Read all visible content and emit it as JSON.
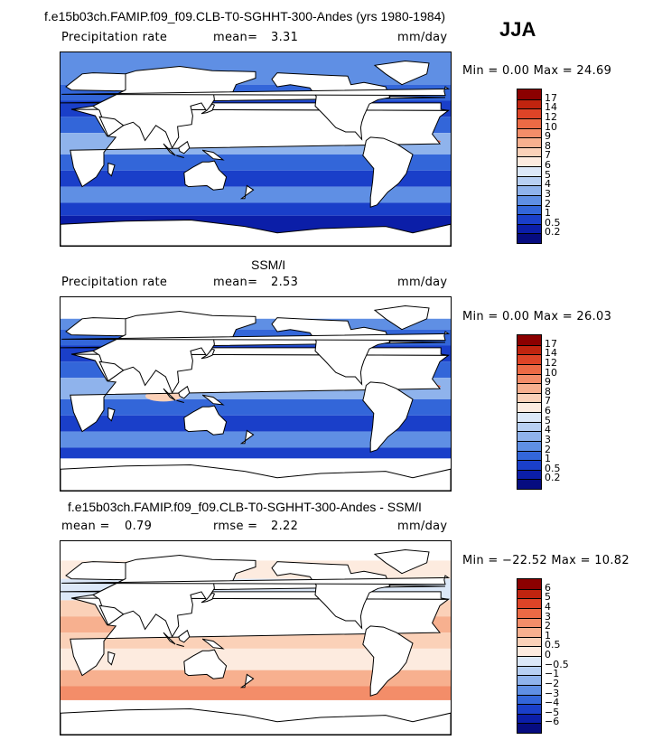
{
  "header": {
    "title": "f.e15b03ch.FAMIP.f09_f09.CLB-T0-SGHHT-300-Andes (yrs 1980-1984)",
    "season": "JJA"
  },
  "panels": [
    {
      "id": "model",
      "variable": "Precipitation rate",
      "stat_label": "mean=",
      "stat_value": "3.31",
      "units": "mm/day",
      "minmax": "Min =    0.00 Max =   24.69"
    },
    {
      "id": "obs",
      "subtitle": "SSM/I",
      "variable": "Precipitation rate",
      "stat_label": "mean=",
      "stat_value": "2.53",
      "units": "mm/day",
      "minmax": "Min =    0.00 Max =   26.03"
    },
    {
      "id": "diff",
      "subtitle": "f.e15b03ch.FAMIP.f09_f09.CLB-T0-SGHHT-300-Andes - SSM/I",
      "stat_label": "mean =",
      "stat_value": "0.79",
      "rmse_label": "rmse =",
      "rmse_value": "2.22",
      "units": "mm/day",
      "minmax": "Min = −22.52 Max =   10.82"
    }
  ],
  "chart_data": [
    {
      "type": "heatmap",
      "title": "Precipitation rate",
      "units": "mm/day",
      "mean": 3.31,
      "min": 0.0,
      "max": 24.69,
      "colorbar_levels": [
        "17",
        "14",
        "12",
        "10",
        "9",
        "8",
        "7",
        "6",
        "5",
        "4",
        "3",
        "2",
        "1",
        "0.5",
        "0.2"
      ],
      "colorbar_colors": [
        "#8b0000",
        "#c0240f",
        "#de4427",
        "#ec6a45",
        "#f38d69",
        "#f7b08f",
        "#fbd1b8",
        "#fdebdf",
        "#dce8f8",
        "#b8d0f3",
        "#8fb3ec",
        "#5f8fe4",
        "#3366d9",
        "#1a3fc9",
        "#0b1ea8",
        "#060c80"
      ]
    },
    {
      "type": "heatmap",
      "title": "SSM/I",
      "units": "mm/day",
      "mean": 2.53,
      "min": 0.0,
      "max": 26.03,
      "colorbar_levels": [
        "17",
        "14",
        "12",
        "10",
        "9",
        "8",
        "7",
        "6",
        "5",
        "4",
        "3",
        "2",
        "1",
        "0.5",
        "0.2"
      ],
      "colorbar_colors": [
        "#8b0000",
        "#c0240f",
        "#de4427",
        "#ec6a45",
        "#f38d69",
        "#f7b08f",
        "#fbd1b8",
        "#fdebdf",
        "#dce8f8",
        "#b8d0f3",
        "#8fb3ec",
        "#5f8fe4",
        "#3366d9",
        "#1a3fc9",
        "#0b1ea8",
        "#060c80"
      ]
    },
    {
      "type": "heatmap",
      "title": "f.e15b03ch.FAMIP.f09_f09.CLB-T0-SGHHT-300-Andes - SSM/I",
      "units": "mm/day",
      "mean": 0.79,
      "rmse": 2.22,
      "min": -22.52,
      "max": 10.82,
      "colorbar_levels": [
        "6",
        "5",
        "4",
        "3",
        "2",
        "1",
        "0.5",
        "0",
        "−0.5",
        "−1",
        "−2",
        "−3",
        "−4",
        "−5",
        "−6"
      ],
      "colorbar_colors": [
        "#8b0000",
        "#c0240f",
        "#de4427",
        "#ec6a45",
        "#f38d69",
        "#f7b08f",
        "#fbd1b8",
        "#fdebdf",
        "#dce8f8",
        "#b8d0f3",
        "#8fb3ec",
        "#5f8fe4",
        "#3366d9",
        "#1a3fc9",
        "#0b1ea8",
        "#060c80"
      ]
    }
  ]
}
